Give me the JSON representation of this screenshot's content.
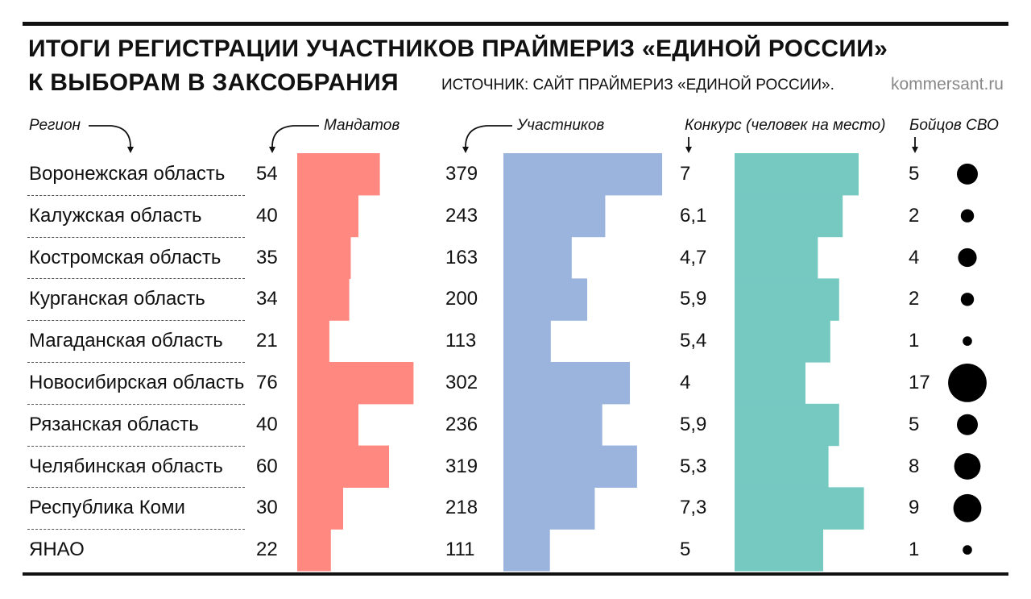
{
  "header": {
    "title_line1": "ИТОГИ РЕГИСТРАЦИИ УЧАСТНИКОВ ПРАЙМЕРИЗ «ЕДИНОЙ РОССИИ»",
    "title_line2": "К ВЫБОРАМ В ЗАКСОБРАНИЯ",
    "source": "ИСТОЧНИК: САЙТ ПРАЙМЕРИЗ «ЕДИНОЙ РОССИИ».",
    "site": "kommersant.ru"
  },
  "columns": {
    "region": "Регион",
    "mandates": "Мандатов",
    "participants": "Участников",
    "competition": "Конкурс (человек на место)",
    "svo": "Бойцов СВО"
  },
  "colors": {
    "mandates": "#ff8880",
    "participants": "#9ab4dd",
    "competition": "#75c9c1",
    "dots": "#000000"
  },
  "chart_data": {
    "type": "table",
    "categories": [
      "Воронежская область",
      "Калужская область",
      "Костромская область",
      "Курганская область",
      "Магаданская область",
      "Новосибирская область",
      "Рязанская область",
      "Челябинская область",
      "Республика Коми",
      "ЯНАО"
    ],
    "series": [
      {
        "name": "Мандатов",
        "values": [
          54,
          40,
          35,
          34,
          21,
          76,
          40,
          60,
          30,
          22
        ],
        "labels": [
          "54",
          "40",
          "35",
          "34",
          "21",
          "76",
          "40",
          "60",
          "30",
          "22"
        ]
      },
      {
        "name": "Участников",
        "values": [
          379,
          243,
          163,
          200,
          113,
          302,
          236,
          319,
          218,
          111
        ],
        "labels": [
          "379",
          "243",
          "163",
          "200",
          "113",
          "302",
          "236",
          "319",
          "218",
          "111"
        ]
      },
      {
        "name": "Конкурс (человек на место)",
        "values": [
          7,
          6.1,
          4.7,
          5.9,
          5.4,
          4,
          5.9,
          5.3,
          7.3,
          5
        ],
        "labels": [
          "7",
          "6,1",
          "4,7",
          "5,9",
          "5,4",
          "4",
          "5,9",
          "5,3",
          "7,3",
          "5"
        ]
      },
      {
        "name": "Бойцов СВО",
        "values": [
          5,
          2,
          4,
          2,
          1,
          17,
          5,
          8,
          9,
          1
        ],
        "labels": [
          "5",
          "2",
          "4",
          "2",
          "1",
          "17",
          "5",
          "8",
          "9",
          "1"
        ]
      }
    ]
  }
}
